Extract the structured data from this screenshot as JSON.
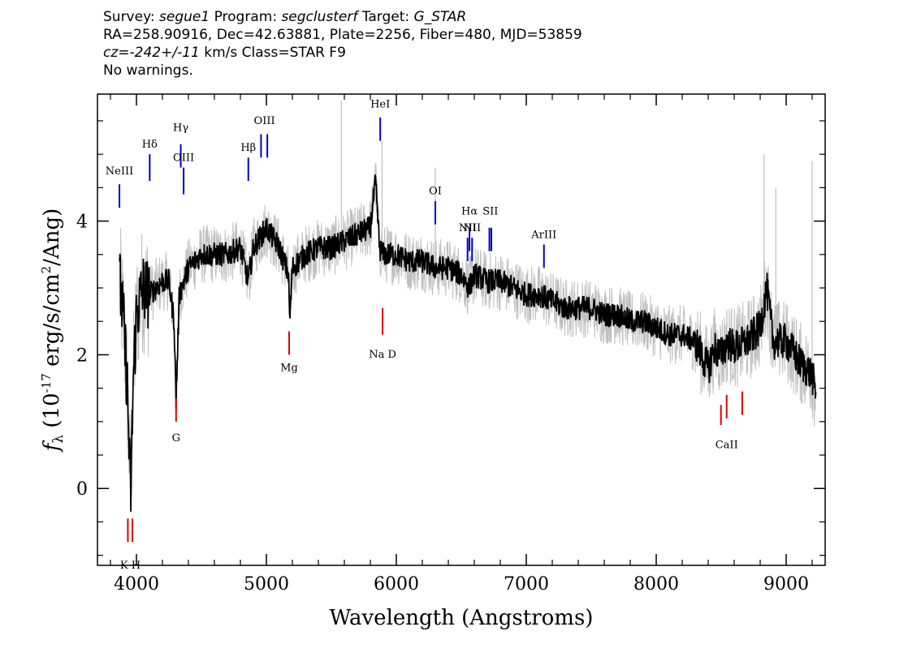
{
  "header": {
    "line1": {
      "survey_label": "Survey: ",
      "survey": "segue1",
      "program_label": " Program: ",
      "program": "segclusterf",
      "target_label": " Target: ",
      "target": "G_STAR"
    },
    "line2": "RA=258.90916, Dec=42.63881, Plate=2256, Fiber=480, MJD=53859",
    "line3": {
      "cz_label": "cz=",
      "cz": "-242+/-11",
      "cz_unit": " km/s Class=STAR F9"
    },
    "line4": "No warnings."
  },
  "chart_data": {
    "type": "line",
    "xlabel": "Wavelength (Angstroms)",
    "ylabel_parts": {
      "f": "f",
      "sub": "λ",
      "pre": " (10",
      "exp1": "-17",
      "mid": " erg/s/cm",
      "exp2": "2",
      "post": "/Ang)"
    },
    "xlim": [
      3700,
      9300
    ],
    "ylim": [
      -1.15,
      5.9
    ],
    "x_ticks": [
      4000,
      5000,
      6000,
      7000,
      8000,
      9000
    ],
    "x_tick_labels": [
      "4000",
      "5000",
      "6000",
      "7000",
      "8000",
      "9000"
    ],
    "y_ticks": [
      0,
      2,
      4
    ],
    "y_tick_labels": [
      "0",
      "2",
      "4"
    ],
    "grid": false,
    "spectrum_anchors": [
      [
        3870,
        3.1
      ],
      [
        3900,
        2.5
      ],
      [
        3930,
        1.5
      ],
      [
        3955,
        -0.2
      ],
      [
        3975,
        1.6
      ],
      [
        4000,
        2.6
      ],
      [
        4050,
        3.0
      ],
      [
        4100,
        2.9
      ],
      [
        4150,
        3.0
      ],
      [
        4200,
        3.1
      ],
      [
        4250,
        3.1
      ],
      [
        4290,
        2.5
      ],
      [
        4305,
        1.3
      ],
      [
        4330,
        2.9
      ],
      [
        4400,
        3.3
      ],
      [
        4500,
        3.5
      ],
      [
        4600,
        3.5
      ],
      [
        4700,
        3.5
      ],
      [
        4800,
        3.6
      ],
      [
        4860,
        3.1
      ],
      [
        4900,
        3.6
      ],
      [
        5000,
        3.9
      ],
      [
        5100,
        3.6
      ],
      [
        5170,
        3.2
      ],
      [
        5180,
        2.5
      ],
      [
        5200,
        3.3
      ],
      [
        5300,
        3.5
      ],
      [
        5400,
        3.6
      ],
      [
        5500,
        3.6
      ],
      [
        5600,
        3.7
      ],
      [
        5700,
        3.8
      ],
      [
        5800,
        3.9
      ],
      [
        5840,
        4.6
      ],
      [
        5870,
        3.6
      ],
      [
        5900,
        3.5
      ],
      [
        6000,
        3.5
      ],
      [
        6100,
        3.4
      ],
      [
        6200,
        3.4
      ],
      [
        6300,
        3.3
      ],
      [
        6400,
        3.3
      ],
      [
        6500,
        3.2
      ],
      [
        6560,
        3.0
      ],
      [
        6600,
        3.2
      ],
      [
        6700,
        3.1
      ],
      [
        6800,
        3.1
      ],
      [
        6900,
        3.0
      ],
      [
        7000,
        2.9
      ],
      [
        7100,
        2.9
      ],
      [
        7200,
        2.8
      ],
      [
        7300,
        2.7
      ],
      [
        7400,
        2.7
      ],
      [
        7500,
        2.7
      ],
      [
        7600,
        2.6
      ],
      [
        7700,
        2.6
      ],
      [
        7800,
        2.5
      ],
      [
        7900,
        2.5
      ],
      [
        8000,
        2.4
      ],
      [
        8100,
        2.3
      ],
      [
        8200,
        2.3
      ],
      [
        8300,
        2.2
      ],
      [
        8400,
        1.8
      ],
      [
        8450,
        2.1
      ],
      [
        8500,
        2.0
      ],
      [
        8550,
        2.2
      ],
      [
        8600,
        2.1
      ],
      [
        8700,
        2.2
      ],
      [
        8800,
        2.4
      ],
      [
        8850,
        3.0
      ],
      [
        8900,
        2.2
      ],
      [
        9000,
        2.2
      ],
      [
        9100,
        1.9
      ],
      [
        9200,
        1.7
      ],
      [
        9230,
        1.4
      ]
    ],
    "noise_amplitude": 0.18,
    "error_amplitude": 0.45,
    "sky_spikes": [
      [
        5577,
        5.8
      ],
      [
        5890,
        5.2
      ],
      [
        6300,
        4.8
      ],
      [
        8830,
        5.0
      ],
      [
        8920,
        4.5
      ],
      [
        9200,
        4.9
      ]
    ],
    "spectrum_color": "#000000",
    "error_color": "#bfbfbf",
    "emission_color": "#0000cc",
    "absorption_color": "#dd0000",
    "emission_lines": [
      {
        "label": "NeIII",
        "x": 3869,
        "y_label": 4.65,
        "y_top": 4.55,
        "y_bottom": 4.2
      },
      {
        "label": "Hδ",
        "x": 4102,
        "y_label": 5.05,
        "y_top": 5.0,
        "y_bottom": 4.6
      },
      {
        "label": "Hγ",
        "x": 4341,
        "y_label": 5.3,
        "y_top": 5.15,
        "y_bottom": 4.8
      },
      {
        "label": "OIII",
        "x": 4363,
        "y_label": 4.85,
        "y_top": 4.8,
        "y_bottom": 4.4
      },
      {
        "label": "Hβ",
        "x": 4861,
        "y_label": 5.0,
        "y_top": 4.95,
        "y_bottom": 4.6
      },
      {
        "label": "OIII",
        "x": 4985,
        "y_label": 5.4,
        "y_top": 5.3,
        "y_bottom": 4.95
      },
      {
        "label": "HeI",
        "x": 5876,
        "y_label": 5.65,
        "y_top": 5.55,
        "y_bottom": 5.2
      },
      {
        "label": "OI",
        "x": 6300,
        "y_label": 4.35,
        "y_top": 4.3,
        "y_bottom": 3.95
      },
      {
        "label": "NII",
        "x": 6548,
        "y_label": 3.8,
        "y_top": 3.75,
        "y_bottom": 3.4
      },
      {
        "label": "Hα",
        "x": 6563,
        "y_label": 4.05,
        "y_top": 3.9,
        "y_bottom": 3.55
      },
      {
        "label": "NII",
        "x": 6583,
        "y_label": 3.8,
        "y_top": 3.75,
        "y_bottom": 3.4
      },
      {
        "label": "SII",
        "x": 6724,
        "y_label": 4.05,
        "y_top": 3.9,
        "y_bottom": 3.55
      },
      {
        "label": "ArIII",
        "x": 7136,
        "y_label": 3.7,
        "y_top": 3.65,
        "y_bottom": 3.3
      }
    ],
    "emission_line_marks": [
      {
        "x": 3869,
        "y_top": 4.55,
        "y_bottom": 4.2
      },
      {
        "x": 4102,
        "y_top": 5.0,
        "y_bottom": 4.6
      },
      {
        "x": 4341,
        "y_top": 5.15,
        "y_bottom": 4.8
      },
      {
        "x": 4363,
        "y_top": 4.8,
        "y_bottom": 4.4
      },
      {
        "x": 4861,
        "y_top": 4.95,
        "y_bottom": 4.6
      },
      {
        "x": 4959,
        "y_top": 5.3,
        "y_bottom": 4.95
      },
      {
        "x": 5007,
        "y_top": 5.3,
        "y_bottom": 4.95
      },
      {
        "x": 5876,
        "y_top": 5.55,
        "y_bottom": 5.2
      },
      {
        "x": 6300,
        "y_top": 4.3,
        "y_bottom": 3.95
      },
      {
        "x": 6548,
        "y_top": 3.75,
        "y_bottom": 3.4
      },
      {
        "x": 6563,
        "y_top": 3.9,
        "y_bottom": 3.55
      },
      {
        "x": 6583,
        "y_top": 3.75,
        "y_bottom": 3.4
      },
      {
        "x": 6716,
        "y_top": 3.9,
        "y_bottom": 3.55
      },
      {
        "x": 6731,
        "y_top": 3.9,
        "y_bottom": 3.55
      },
      {
        "x": 7136,
        "y_top": 3.65,
        "y_bottom": 3.3
      }
    ],
    "absorption_lines": [
      {
        "label": "K H",
        "x": 3953,
        "y_label": -1.05
      },
      {
        "label": "G",
        "x": 4305,
        "y_label": 0.85
      },
      {
        "label": "Mg",
        "x": 5175,
        "y_label": 1.9
      },
      {
        "label": "Na D",
        "x": 5894,
        "y_label": 2.1
      },
      {
        "label": "CaII",
        "x": 8542,
        "y_label": 0.75
      }
    ],
    "absorption_line_marks": [
      {
        "x": 3934,
        "y_top": -0.45,
        "y_bottom": -0.8
      },
      {
        "x": 3969,
        "y_top": -0.45,
        "y_bottom": -0.8
      },
      {
        "x": 4305,
        "y_top": 1.35,
        "y_bottom": 1.0
      },
      {
        "x": 5175,
        "y_top": 2.35,
        "y_bottom": 2.0
      },
      {
        "x": 5894,
        "y_top": 2.7,
        "y_bottom": 2.3
      },
      {
        "x": 8498,
        "y_top": 1.25,
        "y_bottom": 0.95
      },
      {
        "x": 8542,
        "y_top": 1.4,
        "y_bottom": 1.05
      },
      {
        "x": 8662,
        "y_top": 1.45,
        "y_bottom": 1.1
      }
    ]
  }
}
